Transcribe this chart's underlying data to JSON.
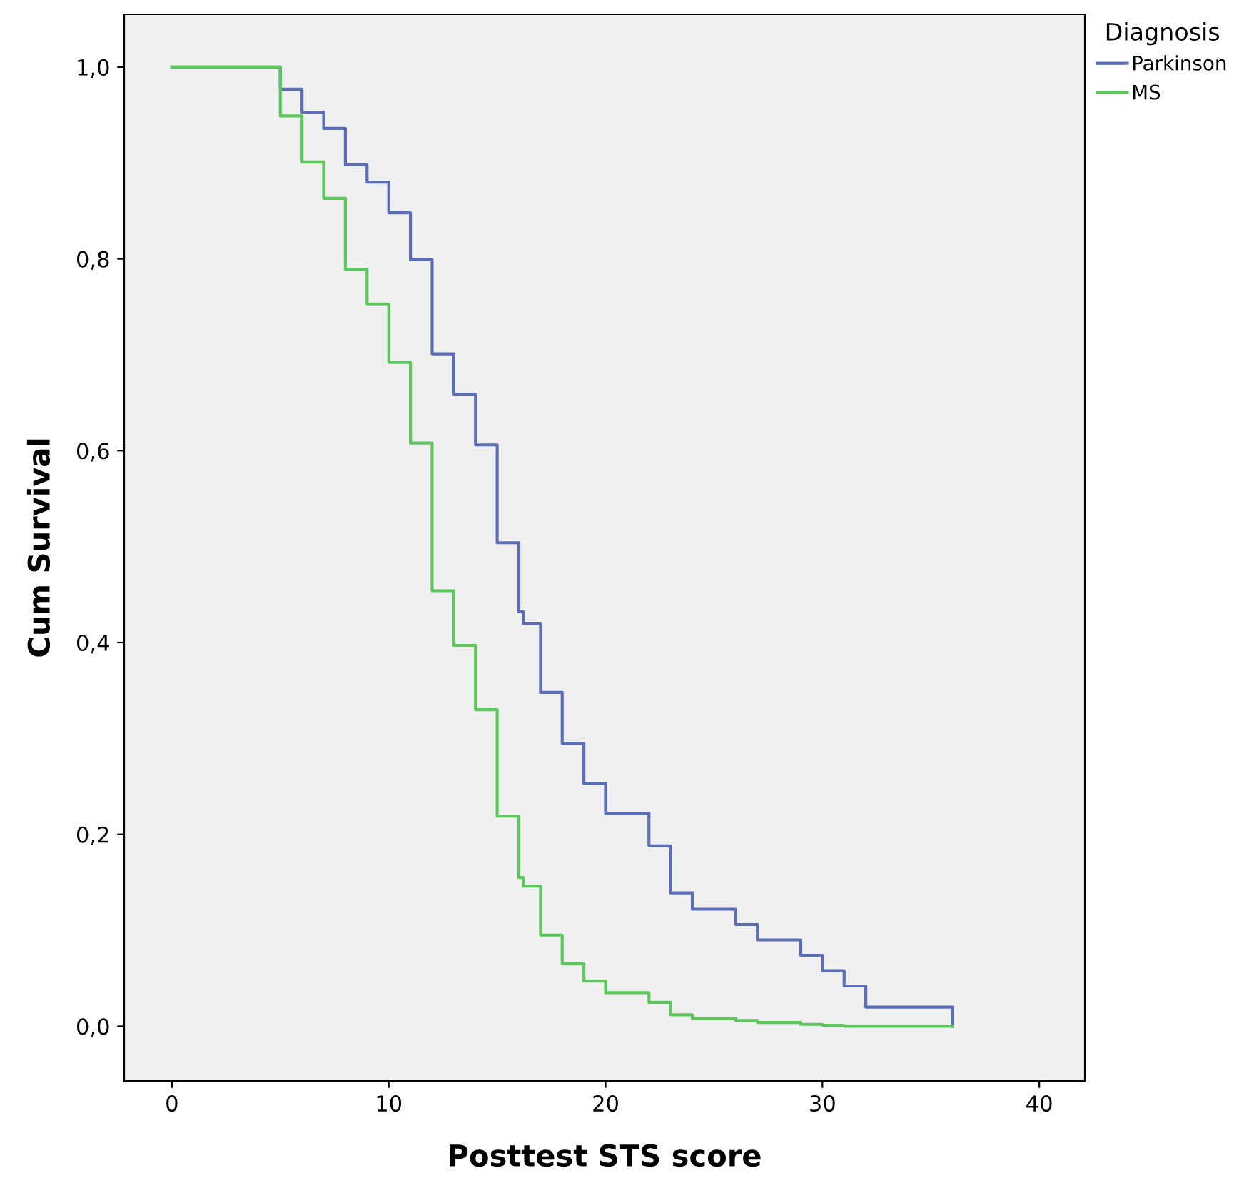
{
  "chart_data": {
    "type": "step",
    "xlabel": "Posttest STS score",
    "ylabel": "Cum Survival",
    "legend_title": "Diagnosis",
    "legend": "top right",
    "grid": false,
    "xlim": [
      -2.2,
      42.1
    ],
    "xticks": [
      0,
      10,
      20,
      30,
      40
    ],
    "ylim": [
      -0.057,
      1.055
    ],
    "yticks": [
      {
        "value": 0,
        "label": "0,0"
      },
      {
        "value": 0.2,
        "label": "0,2"
      },
      {
        "value": 0.4,
        "label": "0,4"
      },
      {
        "value": 0.6,
        "label": "0,6"
      },
      {
        "value": 0.8,
        "label": "0,8"
      },
      {
        "value": 1.0,
        "label": "1,0"
      }
    ],
    "series": [
      {
        "name": "Parkinson",
        "color": "#5a6db8",
        "x": [
          0,
          5,
          6,
          7,
          8,
          9,
          10,
          11,
          12,
          13,
          14,
          15,
          16,
          16.2,
          17,
          18,
          19,
          20,
          22,
          23,
          24,
          26,
          27,
          29,
          30,
          31,
          32,
          36
        ],
        "values": [
          1.0,
          0.977,
          0.953,
          0.936,
          0.898,
          0.88,
          0.848,
          0.799,
          0.701,
          0.659,
          0.606,
          0.504,
          0.432,
          0.42,
          0.348,
          0.295,
          0.253,
          0.222,
          0.188,
          0.139,
          0.122,
          0.106,
          0.09,
          0.074,
          0.058,
          0.042,
          0.02,
          0.0
        ]
      },
      {
        "name": "MS",
        "color": "#5cc85c",
        "x": [
          0,
          5,
          6,
          7,
          8,
          9,
          10,
          11,
          12,
          13,
          14,
          15,
          16,
          16.2,
          17,
          18,
          19,
          20,
          22,
          23,
          24,
          26,
          27,
          29,
          30,
          31,
          36
        ],
        "values": [
          1.0,
          0.949,
          0.901,
          0.863,
          0.789,
          0.753,
          0.692,
          0.608,
          0.454,
          0.397,
          0.33,
          0.219,
          0.155,
          0.146,
          0.095,
          0.065,
          0.047,
          0.035,
          0.025,
          0.012,
          0.008,
          0.006,
          0.004,
          0.002,
          0.001,
          0.0,
          0.0
        ]
      }
    ]
  }
}
